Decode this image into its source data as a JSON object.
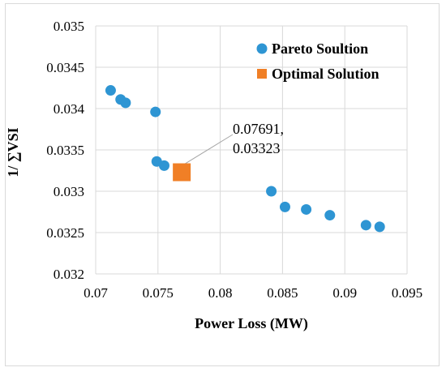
{
  "chart_data": {
    "type": "scatter",
    "title": "",
    "xlabel": "Power Loss (MW)",
    "ylabel": "1/ ∑VSI",
    "xlim": [
      0.07,
      0.095
    ],
    "ylim": [
      0.032,
      0.035
    ],
    "x_ticks": [
      "0.07",
      "0.075",
      "0.08",
      "0.085",
      "0.09",
      "0.095"
    ],
    "y_ticks": [
      "0.032",
      "0.0325",
      "0.033",
      "0.0335",
      "0.034",
      "0.0345",
      "0.035"
    ],
    "grid": "vertical and horizontal",
    "legend_position": "top-right",
    "series": [
      {
        "name": "Pareto Soultion",
        "marker": "circle",
        "color": "#2e95d3",
        "points": [
          [
            0.0712,
            0.03422
          ],
          [
            0.072,
            0.03411
          ],
          [
            0.0724,
            0.03407
          ],
          [
            0.0748,
            0.03396
          ],
          [
            0.0749,
            0.03336
          ],
          [
            0.0755,
            0.03331
          ],
          [
            0.0841,
            0.033
          ],
          [
            0.0852,
            0.03281
          ],
          [
            0.0869,
            0.03278
          ],
          [
            0.0888,
            0.03271
          ],
          [
            0.0917,
            0.03259
          ],
          [
            0.0928,
            0.03257
          ]
        ]
      },
      {
        "name": "Optimal Solution",
        "marker": "square",
        "color": "#f07f26",
        "points": [
          [
            0.07691,
            0.03323
          ]
        ]
      }
    ],
    "annotation": {
      "lines": [
        "0.07691,",
        "0.03323"
      ],
      "target": [
        0.07691,
        0.03323
      ]
    }
  }
}
